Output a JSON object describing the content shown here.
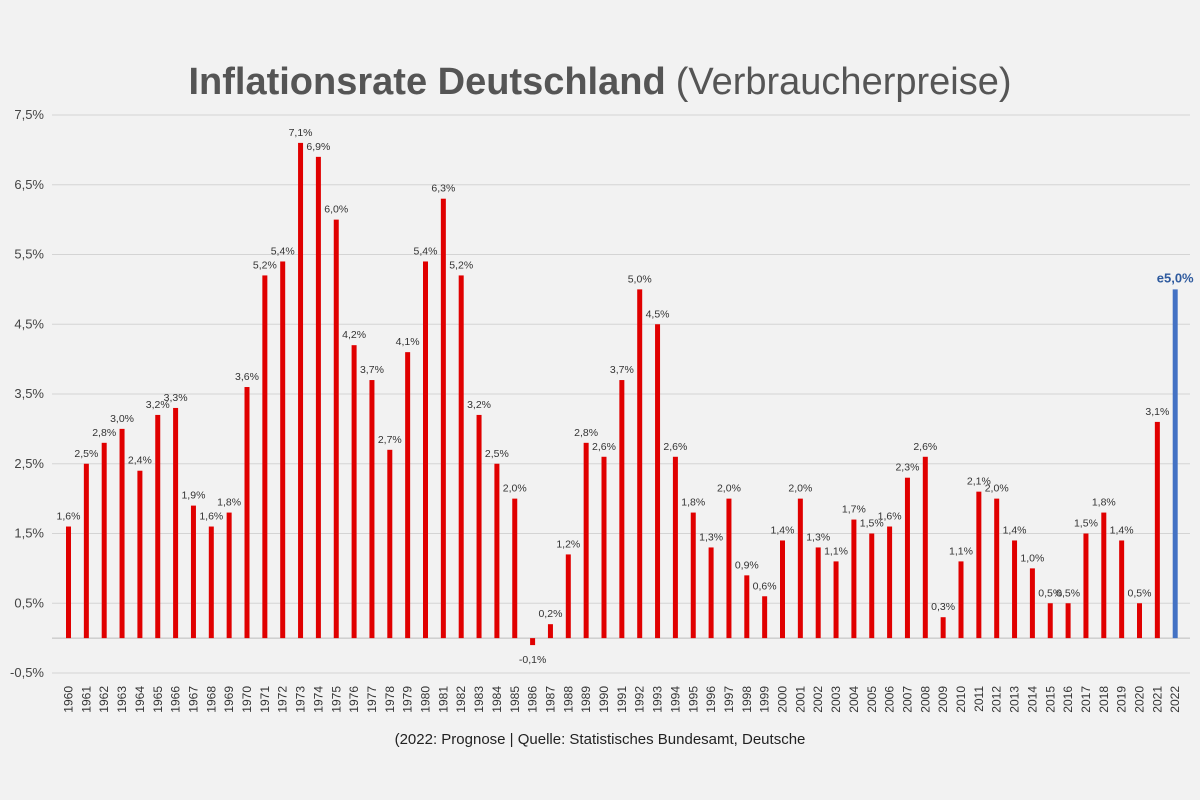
{
  "chart_data": {
    "type": "bar",
    "title": "Inflationsrate Deutschland",
    "subtitle": "(Verbraucherpreise)",
    "footnote": "(2022: Prognose | Quelle: Statistisches Bundesamt, Deutsche",
    "ylim": [
      -0.5,
      7.5
    ],
    "yticks": [
      -0.5,
      0.5,
      1.5,
      2.5,
      3.5,
      4.5,
      5.5,
      6.5,
      7.5
    ],
    "ytick_labels": [
      "-0,5%",
      "0,5%",
      "1,5%",
      "2,5%",
      "3,5%",
      "4,5%",
      "5,5%",
      "6,5%",
      "7,5%"
    ],
    "grid": true,
    "legend": "none",
    "colors": {
      "actual": "#e00000",
      "forecast": "#4472c4",
      "forecast_label": "#2e5a9e",
      "grid": "#d4d4d4"
    },
    "categories": [
      "1960",
      "1961",
      "1962",
      "1963",
      "1964",
      "1965",
      "1966",
      "1967",
      "1968",
      "1969",
      "1970",
      "1971",
      "1972",
      "1973",
      "1974",
      "1975",
      "1976",
      "1977",
      "1978",
      "1979",
      "1980",
      "1981",
      "1982",
      "1983",
      "1984",
      "1985",
      "1986",
      "1987",
      "1988",
      "1989",
      "1990",
      "1991",
      "1992",
      "1993",
      "1994",
      "1995",
      "1996",
      "1997",
      "1998",
      "1999",
      "2000",
      "2001",
      "2002",
      "2003",
      "2004",
      "2005",
      "2006",
      "2007",
      "2008",
      "2009",
      "2010",
      "2011",
      "2012",
      "2013",
      "2014",
      "2015",
      "2016",
      "2017",
      "2018",
      "2019",
      "2020",
      "2021",
      "2022"
    ],
    "values": [
      1.6,
      2.5,
      2.8,
      3.0,
      2.4,
      3.2,
      3.3,
      1.9,
      1.6,
      1.8,
      3.6,
      5.2,
      5.4,
      7.1,
      6.9,
      6.0,
      4.2,
      3.7,
      2.7,
      4.1,
      5.4,
      6.3,
      5.2,
      3.2,
      2.5,
      2.0,
      -0.1,
      0.2,
      1.2,
      2.8,
      2.6,
      3.7,
      5.0,
      4.5,
      2.6,
      1.8,
      1.3,
      2.0,
      0.9,
      0.6,
      1.4,
      2.0,
      1.3,
      1.1,
      1.7,
      1.5,
      1.6,
      2.3,
      2.6,
      0.3,
      1.1,
      2.1,
      2.0,
      1.4,
      1.0,
      0.5,
      0.5,
      1.5,
      1.8,
      1.4,
      0.5,
      3.1,
      5.0
    ],
    "data_labels": [
      "1,6%",
      "2,5%",
      "2,8%",
      "3,0%",
      "2,4%",
      "3,2%",
      "3,3%",
      "1,9%",
      "1,6%",
      "1,8%",
      "3,6%",
      "5,2%",
      "5,4%",
      "7,1%",
      "6,9%",
      "6,0%",
      "4,2%",
      "3,7%",
      "2,7%",
      "4,1%",
      "5,4%",
      "6,3%",
      "5,2%",
      "3,2%",
      "2,5%",
      "2,0%",
      "-0,1%",
      "0,2%",
      "1,2%",
      "2,8%",
      "2,6%",
      "3,7%",
      "5,0%",
      "4,5%",
      "2,6%",
      "1,8%",
      "1,3%",
      "2,0%",
      "0,9%",
      "0,6%",
      "1,4%",
      "2,0%",
      "1,3%",
      "1,1%",
      "1,7%",
      "1,5%",
      "1,6%",
      "2,3%",
      "2,6%",
      "0,3%",
      "1,1%",
      "2,1%",
      "2,0%",
      "1,4%",
      "1,0%",
      "0,5%",
      "0,5%",
      "1,5%",
      "1,8%",
      "1,4%",
      "0,5%",
      "3,1%",
      "e5,0%"
    ],
    "forecast_category": "2022"
  }
}
